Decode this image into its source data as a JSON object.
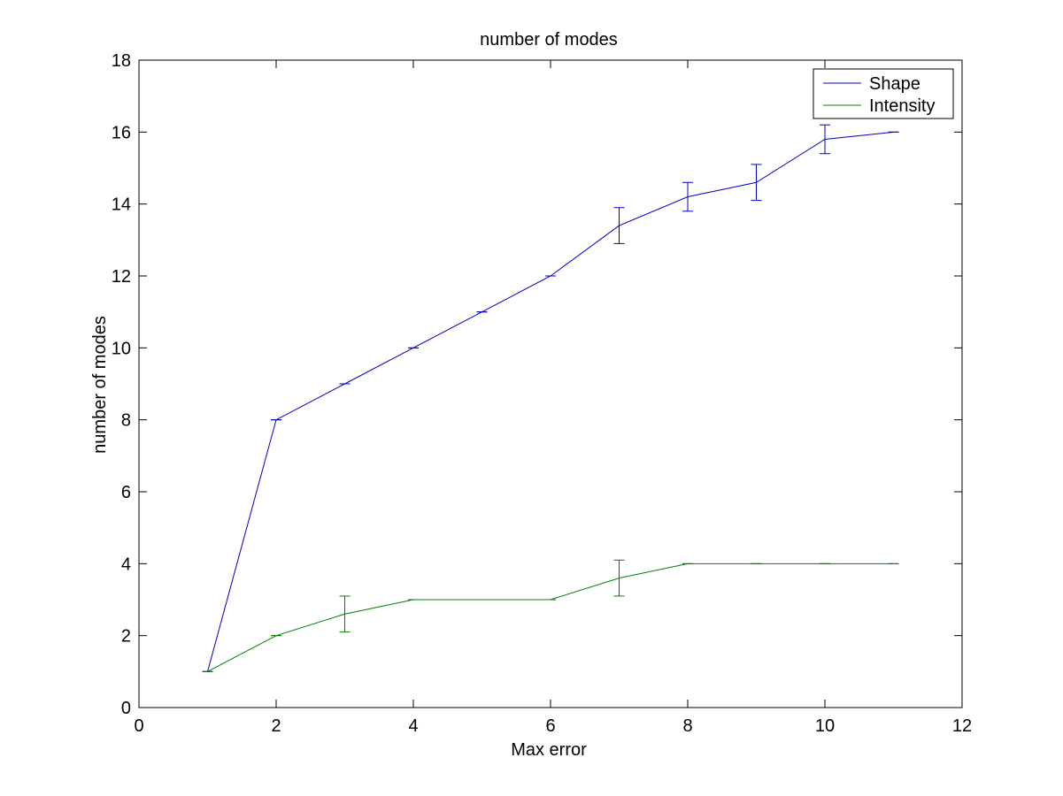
{
  "chart_data": {
    "type": "line",
    "title": "number of modes",
    "xlabel": "Max error",
    "ylabel": "number of modes",
    "xlim": [
      0,
      12
    ],
    "ylim": [
      0,
      18
    ],
    "xticks": [
      0,
      2,
      4,
      6,
      8,
      10,
      12
    ],
    "yticks": [
      0,
      2,
      4,
      6,
      8,
      10,
      12,
      14,
      16,
      18
    ],
    "grid": false,
    "legend_position": "top-right",
    "series": [
      {
        "name": "Shape",
        "color": "#0000c8",
        "x": [
          1,
          2,
          3,
          4,
          5,
          6,
          7,
          8,
          9,
          10,
          11
        ],
        "y": [
          1,
          8,
          9,
          10,
          11,
          12,
          13.4,
          14.2,
          14.6,
          15.8,
          16
        ],
        "err": [
          0,
          0,
          0,
          0,
          0,
          0,
          0.5,
          0.4,
          0.5,
          0.4,
          0
        ]
      },
      {
        "name": "Intensity",
        "color": "#008000",
        "x": [
          1,
          2,
          3,
          4,
          5,
          6,
          7,
          8,
          9,
          10,
          11
        ],
        "y": [
          1,
          2,
          2.6,
          3,
          3,
          3,
          3.6,
          4,
          4,
          4,
          4
        ],
        "err": [
          0,
          0,
          0.5,
          0,
          0,
          0,
          0.5,
          0,
          0,
          0,
          0
        ]
      }
    ]
  }
}
